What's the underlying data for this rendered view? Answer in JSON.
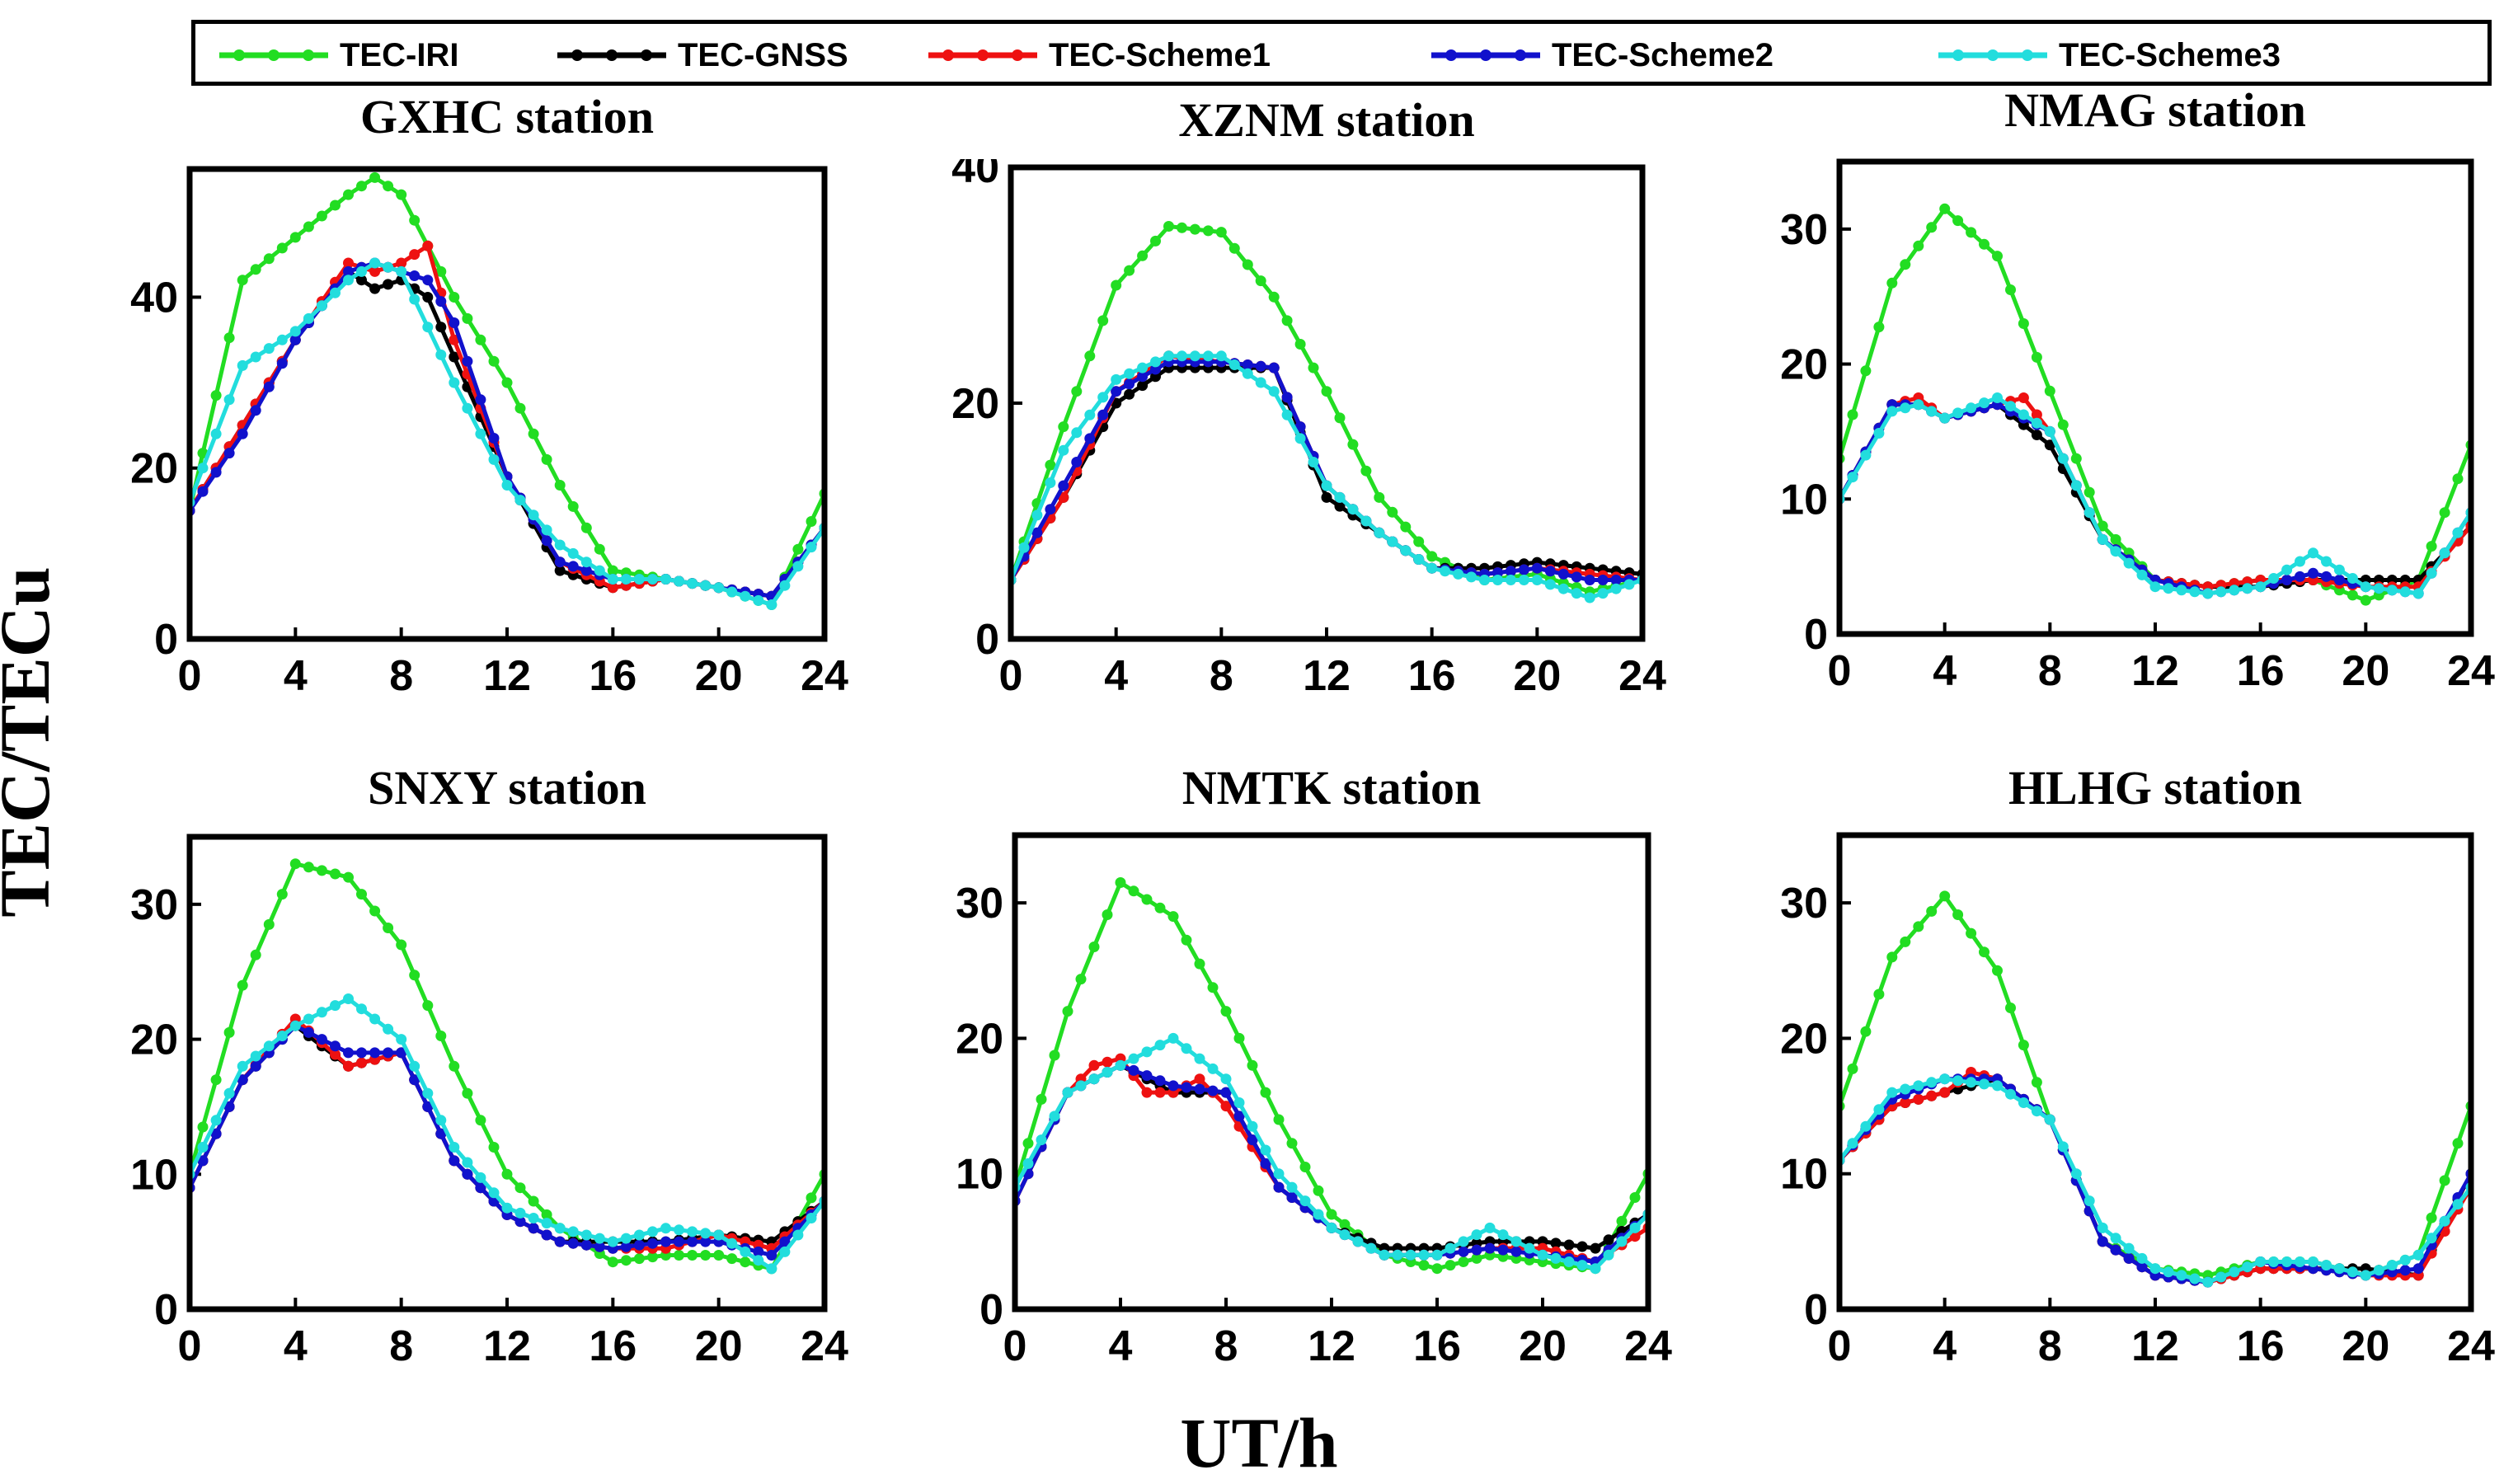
{
  "figure": {
    "ylabel": "TEC/TECu",
    "xlabel": "UT/h"
  },
  "legend": [
    {
      "name": "TEC-IRI",
      "color": "#22dd22"
    },
    {
      "name": "TEC-GNSS",
      "color": "#000000"
    },
    {
      "name": "TEC-Scheme1",
      "color": "#ee1111"
    },
    {
      "name": "TEC-Scheme2",
      "color": "#1111cc"
    },
    {
      "name": "TEC-Scheme3",
      "color": "#22dddd"
    }
  ],
  "chart_data": [
    {
      "type": "line",
      "title": "GXHC station",
      "xlim": [
        0,
        24
      ],
      "ylim": [
        0,
        55
      ],
      "xticks": [
        0,
        4,
        8,
        12,
        16,
        20,
        24
      ],
      "yticks": [
        0,
        20,
        40
      ],
      "series": [
        {
          "name": "TEC-IRI",
          "x": [
            0,
            2,
            4,
            6,
            7,
            8,
            10,
            12,
            14,
            16,
            18,
            20,
            22,
            24
          ],
          "y": [
            15,
            42,
            47,
            52,
            54,
            52,
            40,
            30,
            18,
            8,
            7,
            6,
            4,
            17
          ]
        },
        {
          "name": "TEC-GNSS",
          "x": [
            0,
            2,
            4,
            6,
            7,
            8,
            9,
            10,
            12,
            14,
            16,
            18,
            20,
            22,
            24
          ],
          "y": [
            15,
            25,
            35,
            43,
            41,
            42,
            40,
            33,
            19,
            8,
            6,
            7,
            6,
            5,
            13
          ]
        },
        {
          "name": "TEC-Scheme1",
          "x": [
            0,
            2,
            4,
            6,
            7,
            8,
            9,
            10,
            12,
            14,
            16,
            18,
            20,
            22,
            24
          ],
          "y": [
            15,
            25,
            35,
            44,
            43,
            44,
            46,
            35,
            19,
            9,
            6,
            7,
            6,
            5,
            13
          ]
        },
        {
          "name": "TEC-Scheme2",
          "x": [
            0,
            2,
            4,
            6,
            7,
            8,
            9,
            10,
            12,
            14,
            16,
            18,
            20,
            22,
            24
          ],
          "y": [
            15,
            24,
            35,
            43,
            44,
            43,
            42,
            37,
            19,
            9,
            7,
            7,
            6,
            5,
            13
          ]
        },
        {
          "name": "TEC-Scheme3",
          "x": [
            0,
            2,
            4,
            6,
            7,
            8,
            10,
            12,
            14,
            16,
            18,
            20,
            22,
            24
          ],
          "y": [
            16,
            32,
            36,
            42,
            44,
            43,
            30,
            18,
            11,
            7,
            7,
            6,
            4,
            13
          ]
        }
      ]
    },
    {
      "type": "line",
      "title": "XZNM station",
      "xlim": [
        0,
        24
      ],
      "ylim": [
        0,
        40
      ],
      "xticks": [
        0,
        4,
        8,
        12,
        16,
        20,
        24
      ],
      "yticks": [
        0,
        20,
        40
      ],
      "series": [
        {
          "name": "TEC-IRI",
          "x": [
            0,
            2,
            4,
            6,
            8,
            10,
            12,
            14,
            16,
            18,
            20,
            22,
            24
          ],
          "y": [
            5,
            18,
            30,
            35,
            34.5,
            29,
            21,
            12,
            7,
            5,
            5.5,
            4,
            5
          ]
        },
        {
          "name": "TEC-GNSS",
          "x": [
            0,
            2,
            4,
            6,
            8,
            10,
            12,
            14,
            16,
            18,
            20,
            22,
            24
          ],
          "y": [
            5,
            12,
            20,
            23,
            23,
            23,
            12,
            9,
            6,
            6,
            6.5,
            6,
            5.5
          ]
        },
        {
          "name": "TEC-Scheme1",
          "x": [
            0,
            2,
            4,
            6,
            8,
            10,
            12,
            14,
            16,
            18,
            20,
            22,
            24
          ],
          "y": [
            5,
            12,
            21,
            24,
            23.5,
            23,
            13,
            9,
            6,
            5.5,
            6,
            5.5,
            5
          ]
        },
        {
          "name": "TEC-Scheme2",
          "x": [
            0,
            2,
            4,
            6,
            8,
            10,
            12,
            14,
            16,
            18,
            20,
            22,
            24
          ],
          "y": [
            5,
            13,
            21,
            23.5,
            23.5,
            23,
            13,
            9,
            6,
            5.5,
            6,
            5,
            5
          ]
        },
        {
          "name": "TEC-Scheme3",
          "x": [
            0,
            2,
            4,
            6,
            8,
            10,
            12,
            14,
            16,
            18,
            20,
            22,
            24
          ],
          "y": [
            5,
            16,
            22,
            24,
            24,
            21,
            13,
            9,
            6,
            5,
            5,
            3.5,
            5
          ]
        }
      ]
    },
    {
      "type": "line",
      "title": "NMAG station",
      "xlim": [
        0,
        24
      ],
      "ylim": [
        0,
        35
      ],
      "xticks": [
        0,
        4,
        8,
        12,
        16,
        20,
        24
      ],
      "yticks": [
        0,
        10,
        20,
        30
      ],
      "series": [
        {
          "name": "TEC-IRI",
          "x": [
            0,
            2,
            4,
            6,
            8,
            10,
            12,
            14,
            16,
            18,
            20,
            22,
            24
          ],
          "y": [
            13,
            26,
            31.5,
            28,
            18,
            8,
            4,
            3.5,
            4,
            4,
            2.5,
            4,
            14
          ]
        },
        {
          "name": "TEC-GNSS",
          "x": [
            0,
            2,
            3,
            4,
            6,
            8,
            10,
            12,
            14,
            16,
            18,
            20,
            22,
            24
          ],
          "y": [
            10,
            17,
            17,
            16,
            17,
            14,
            7,
            4,
            3.5,
            3.5,
            4,
            4,
            4,
            8
          ]
        },
        {
          "name": "TEC-Scheme1",
          "x": [
            0,
            2,
            3,
            4,
            6,
            7,
            8,
            10,
            12,
            14,
            16,
            18,
            20,
            22,
            24
          ],
          "y": [
            10,
            17,
            17.5,
            16,
            17,
            17.5,
            15,
            7,
            4,
            3.5,
            4,
            4,
            3.5,
            3.5,
            8
          ]
        },
        {
          "name": "TEC-Scheme2",
          "x": [
            0,
            2,
            3,
            4,
            6,
            8,
            10,
            12,
            14,
            16,
            18,
            20,
            22,
            24
          ],
          "y": [
            10,
            17,
            17,
            16,
            17,
            15,
            7,
            4,
            3,
            3.5,
            4.5,
            3.5,
            3,
            9
          ]
        },
        {
          "name": "TEC-Scheme3",
          "x": [
            0,
            2,
            3,
            4,
            6,
            8,
            10,
            12,
            14,
            16,
            18,
            20,
            22,
            24
          ],
          "y": [
            10,
            16.5,
            17,
            16,
            17.5,
            15,
            7,
            3.5,
            3,
            3.5,
            6,
            3.5,
            3,
            9
          ]
        }
      ]
    },
    {
      "type": "line",
      "title": "SNXY station",
      "xlim": [
        0,
        24
      ],
      "ylim": [
        0,
        35
      ],
      "xticks": [
        0,
        4,
        8,
        12,
        16,
        20,
        24
      ],
      "yticks": [
        0,
        10,
        20,
        30
      ],
      "series": [
        {
          "name": "TEC-IRI",
          "x": [
            0,
            2,
            4,
            6,
            8,
            10,
            12,
            14,
            16,
            18,
            20,
            22,
            24
          ],
          "y": [
            10,
            24,
            33,
            32,
            27,
            18,
            10,
            6,
            3.5,
            4,
            4,
            3,
            10
          ]
        },
        {
          "name": "TEC-GNSS",
          "x": [
            0,
            2,
            4,
            6,
            8,
            10,
            12,
            14,
            16,
            18,
            20,
            22,
            24
          ],
          "y": [
            9,
            17,
            21,
            18,
            19,
            11,
            7,
            5,
            5,
            5,
            5.5,
            5,
            8
          ]
        },
        {
          "name": "TEC-Scheme1",
          "x": [
            0,
            2,
            4,
            6,
            8,
            10,
            12,
            14,
            16,
            18,
            20,
            22,
            24
          ],
          "y": [
            9,
            17,
            21.5,
            18,
            19,
            11,
            7,
            5,
            4.5,
            4.5,
            5.5,
            4.5,
            8
          ]
        },
        {
          "name": "TEC-Scheme2",
          "x": [
            0,
            2,
            4,
            6,
            8,
            10,
            12,
            14,
            16,
            18,
            20,
            22,
            24
          ],
          "y": [
            9,
            17,
            21,
            19,
            19,
            11,
            7,
            5,
            4.5,
            5,
            5,
            4,
            8
          ]
        },
        {
          "name": "TEC-Scheme3",
          "x": [
            0,
            2,
            4,
            6,
            8,
            10,
            12,
            14,
            16,
            18,
            20,
            22,
            24
          ],
          "y": [
            10,
            18,
            21,
            23,
            20,
            12,
            7.5,
            6,
            5,
            6,
            5.5,
            3,
            8
          ]
        }
      ]
    },
    {
      "type": "line",
      "title": "NMTK station",
      "xlim": [
        0,
        24
      ],
      "ylim": [
        0,
        35
      ],
      "xticks": [
        0,
        4,
        8,
        12,
        16,
        20,
        24
      ],
      "yticks": [
        0,
        10,
        20,
        30
      ],
      "series": [
        {
          "name": "TEC-IRI",
          "x": [
            0,
            2,
            4,
            6,
            8,
            10,
            12,
            14,
            16,
            18,
            20,
            22,
            24
          ],
          "y": [
            9,
            22,
            31.5,
            29,
            22,
            14,
            7,
            4,
            3,
            4,
            3.5,
            3,
            10
          ]
        },
        {
          "name": "TEC-GNSS",
          "x": [
            0,
            2,
            4,
            6,
            8,
            10,
            12,
            14,
            16,
            18,
            20,
            22,
            24
          ],
          "y": [
            8,
            16,
            18,
            16,
            16,
            9,
            6,
            4.5,
            4.5,
            5,
            5,
            4.5,
            7
          ]
        },
        {
          "name": "TEC-Scheme1",
          "x": [
            0,
            2,
            3,
            4,
            5,
            6,
            7,
            8,
            10,
            12,
            14,
            16,
            18,
            20,
            22,
            24
          ],
          "y": [
            8,
            16,
            18,
            18.5,
            16,
            16,
            17,
            15,
            9,
            6,
            4,
            4,
            4.5,
            4.5,
            3.5,
            6
          ]
        },
        {
          "name": "TEC-Scheme2",
          "x": [
            0,
            2,
            4,
            6,
            8,
            10,
            12,
            14,
            16,
            18,
            20,
            22,
            24
          ],
          "y": [
            8,
            16,
            18,
            16.5,
            16,
            9,
            6,
            4,
            4,
            4.5,
            4,
            3.5,
            7
          ]
        },
        {
          "name": "TEC-Scheme3",
          "x": [
            0,
            2,
            4,
            6,
            8,
            10,
            12,
            14,
            16,
            18,
            20,
            22,
            24
          ],
          "y": [
            9,
            16,
            18,
            20,
            17,
            10,
            6,
            4,
            4,
            6,
            4,
            3,
            7
          ]
        }
      ]
    },
    {
      "type": "line",
      "title": "HLHG station",
      "xlim": [
        0,
        24
      ],
      "ylim": [
        0,
        35
      ],
      "xticks": [
        0,
        4,
        8,
        12,
        16,
        20,
        24
      ],
      "yticks": [
        0,
        10,
        20,
        30
      ],
      "series": [
        {
          "name": "TEC-IRI",
          "x": [
            0,
            2,
            4,
            6,
            8,
            10,
            12,
            14,
            16,
            18,
            20,
            22,
            24
          ],
          "y": [
            15,
            26,
            30.5,
            25,
            14,
            5,
            3,
            2.5,
            3.5,
            3.5,
            2.5,
            4,
            15
          ]
        },
        {
          "name": "TEC-GNSS",
          "x": [
            0,
            2,
            4,
            6,
            8,
            10,
            12,
            14,
            16,
            18,
            20,
            22,
            24
          ],
          "y": [
            11,
            15,
            16,
            17,
            14,
            5,
            2.5,
            2,
            3,
            3,
            3,
            2.5,
            10
          ]
        },
        {
          "name": "TEC-Scheme1",
          "x": [
            0,
            2,
            4,
            5,
            6,
            8,
            10,
            12,
            14,
            16,
            18,
            20,
            22,
            24
          ],
          "y": [
            11,
            15,
            16,
            17.5,
            17,
            14,
            5,
            2.5,
            2,
            3,
            3,
            2.5,
            2.5,
            9
          ]
        },
        {
          "name": "TEC-Scheme2",
          "x": [
            0,
            2,
            4,
            6,
            8,
            10,
            12,
            14,
            16,
            18,
            20,
            22,
            24
          ],
          "y": [
            11,
            15.5,
            17,
            17,
            14,
            5,
            2.5,
            2,
            3.5,
            3,
            2.5,
            3,
            10
          ]
        },
        {
          "name": "TEC-Scheme3",
          "x": [
            0,
            2,
            4,
            6,
            8,
            10,
            12,
            14,
            16,
            18,
            20,
            22,
            24
          ],
          "y": [
            11,
            16,
            17,
            16.5,
            14,
            6,
            3,
            2,
            3.5,
            3.5,
            2.5,
            4,
            9
          ]
        }
      ]
    }
  ]
}
